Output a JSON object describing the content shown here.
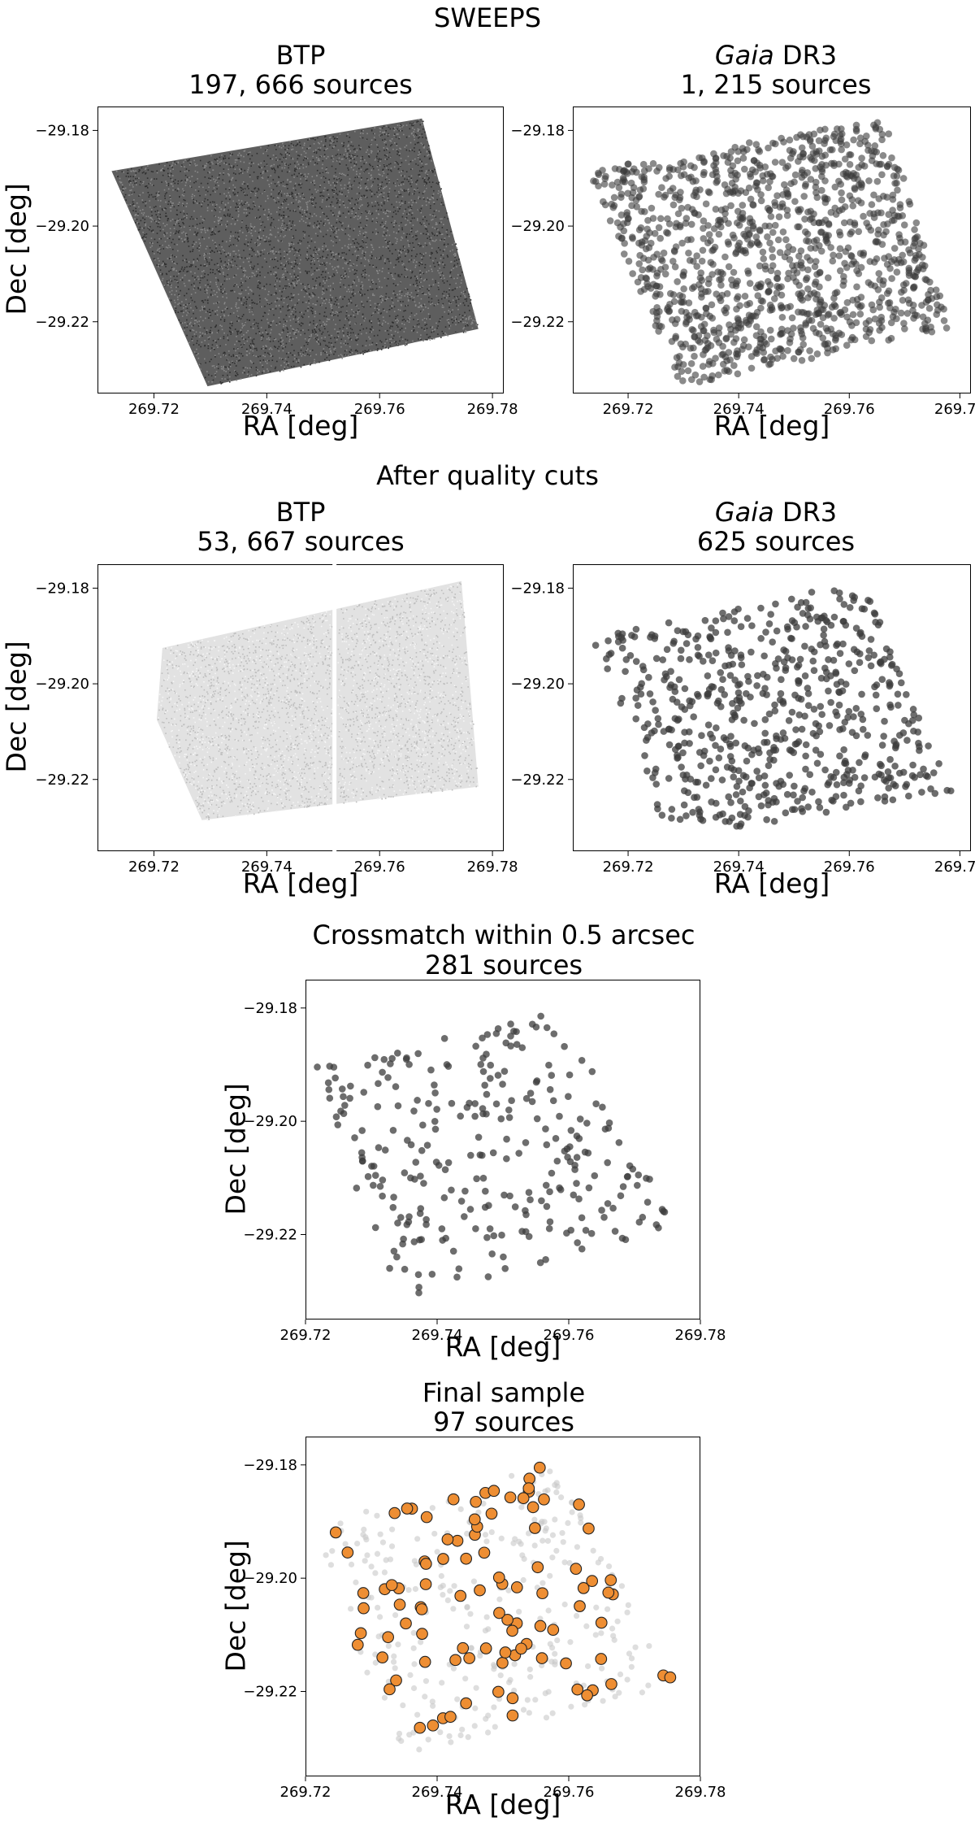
{
  "headers": {
    "sweeps": "SWEEPS",
    "quality": "After quality cuts"
  },
  "panels": [
    {
      "id": "p1",
      "title_plain": "BTP",
      "title_italic": "",
      "title_suffix": "",
      "subtitle": "197, 666 sources",
      "xlabel": "RA [deg]",
      "ylabel": "Dec [deg]"
    },
    {
      "id": "p2",
      "title_plain": "",
      "title_italic": "Gaia",
      "title_suffix": " DR3",
      "subtitle": "1, 215 sources",
      "xlabel": "RA [deg]",
      "ylabel": ""
    },
    {
      "id": "p3",
      "title_plain": "BTP",
      "title_italic": "",
      "title_suffix": "",
      "subtitle": "53, 667 sources",
      "xlabel": "RA [deg]",
      "ylabel": "Dec [deg]"
    },
    {
      "id": "p4",
      "title_plain": "",
      "title_italic": "Gaia",
      "title_suffix": " DR3",
      "subtitle": "625 sources",
      "xlabel": "RA [deg]",
      "ylabel": ""
    },
    {
      "id": "p5",
      "title_plain": "Crossmatch within 0.5 arcsec",
      "title_italic": "",
      "title_suffix": "",
      "subtitle": "281 sources",
      "xlabel": "RA [deg]",
      "ylabel": "Dec [deg]"
    },
    {
      "id": "p6",
      "title_plain": "Final sample",
      "title_italic": "",
      "title_suffix": "",
      "subtitle": "97 sources",
      "xlabel": "RA [deg]",
      "ylabel": "Dec [deg]"
    }
  ],
  "ticks": {
    "x": [
      "269.72",
      "269.74",
      "269.76",
      "269.78"
    ],
    "y": [
      "−29.18",
      "−29.20",
      "−29.22"
    ]
  },
  "chart_data": [
    {
      "panel": "p1",
      "type": "scatter",
      "render": "density",
      "n_points": 197666,
      "color": "#3a3a3a",
      "xlim": [
        269.71,
        269.782
      ],
      "ylim": [
        -29.235,
        -29.175
      ],
      "footprint": [
        [
          269.7125,
          -29.1885
        ],
        [
          269.7675,
          -29.1775
        ],
        [
          269.7775,
          -29.2215
        ],
        [
          269.7295,
          -29.2335
        ]
      ]
    },
    {
      "panel": "p2",
      "type": "scatter",
      "n_points": 1215,
      "color": "#3c3c3c",
      "marker_alpha": 0.6,
      "xlim": [
        269.71,
        269.782
      ],
      "ylim": [
        -29.235,
        -29.175
      ],
      "footprint": [
        [
          269.7125,
          -29.1885
        ],
        [
          269.7665,
          -29.1775
        ],
        [
          269.7785,
          -29.2215
        ],
        [
          269.7295,
          -29.2335
        ]
      ]
    },
    {
      "panel": "p3",
      "type": "scatter",
      "render": "density",
      "n_points": 53667,
      "color": "#8f8f8f",
      "xlim": [
        269.71,
        269.782
      ],
      "ylim": [
        -29.235,
        -29.175
      ],
      "footprint": [
        [
          269.7215,
          -29.1925
        ],
        [
          269.7745,
          -29.1785
        ],
        [
          269.7775,
          -29.2215
        ],
        [
          269.7285,
          -29.2285
        ],
        [
          269.7205,
          -29.2075
        ]
      ],
      "gap_ra": [
        269.7515,
        269.7525
      ]
    },
    {
      "panel": "p4",
      "type": "scatter",
      "n_points": 625,
      "color": "#3c3c3c",
      "marker_alpha": 0.75,
      "xlim": [
        269.71,
        269.782
      ],
      "ylim": [
        -29.235,
        -29.175
      ],
      "footprint": [
        [
          269.7125,
          -29.1905
        ],
        [
          269.7625,
          -29.1785
        ],
        [
          269.7785,
          -29.2225
        ],
        [
          269.7275,
          -29.2325
        ]
      ]
    },
    {
      "panel": "p5",
      "type": "scatter",
      "n_points": 281,
      "color": "#3c3c3c",
      "marker_alpha": 0.75,
      "xlim": [
        269.72,
        269.78
      ],
      "ylim": [
        -29.235,
        -29.175
      ],
      "footprint": [
        [
          269.7215,
          -29.1905
        ],
        [
          269.7585,
          -29.1795
        ],
        [
          269.7765,
          -29.2195
        ],
        [
          269.7335,
          -29.2315
        ]
      ]
    },
    {
      "panel": "p6",
      "type": "scatter",
      "xlim": [
        269.72,
        269.78
      ],
      "ylim": [
        -29.235,
        -29.175
      ],
      "series": [
        {
          "name": "",
          "n_points": 281,
          "color": "#c8c8c8",
          "marker_alpha": 0.6
        },
        {
          "name": "",
          "n_points": 97,
          "color": "#ee8e33",
          "edge": "#222222"
        }
      ],
      "footprint": [
        [
          269.7215,
          -29.1905
        ],
        [
          269.7585,
          -29.1795
        ],
        [
          269.7765,
          -29.2195
        ],
        [
          269.7335,
          -29.2315
        ]
      ]
    }
  ]
}
